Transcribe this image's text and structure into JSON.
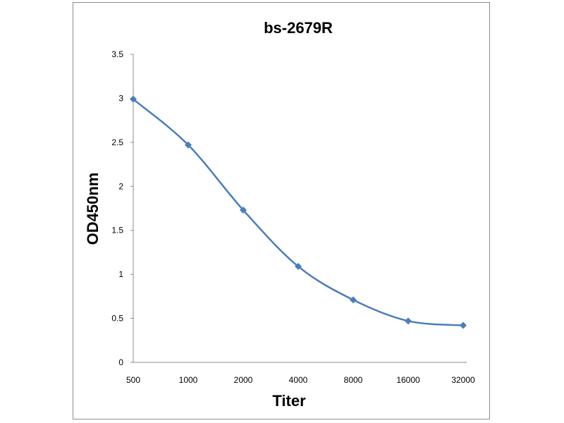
{
  "chart_data": {
    "type": "line",
    "title": "bs-2679R",
    "xlabel": "Titer",
    "ylabel": "OD450nm",
    "categories": [
      "500",
      "1000",
      "2000",
      "4000",
      "8000",
      "16000",
      "32000"
    ],
    "series": [
      {
        "values": [
          2.99,
          2.47,
          1.73,
          1.09,
          0.71,
          0.47,
          0.42
        ]
      }
    ],
    "ylim": [
      0,
      3.5
    ],
    "yticks": [
      "0",
      "0.5",
      "1",
      "1.5",
      "2",
      "2.5",
      "3",
      "3.5"
    ],
    "grid": false,
    "legend": "none",
    "smooth": true,
    "marker": "diamond",
    "colors": {
      "series": "#4a7ebb",
      "axis": "#8c8c8c",
      "frame": "#8c8c8c"
    }
  }
}
